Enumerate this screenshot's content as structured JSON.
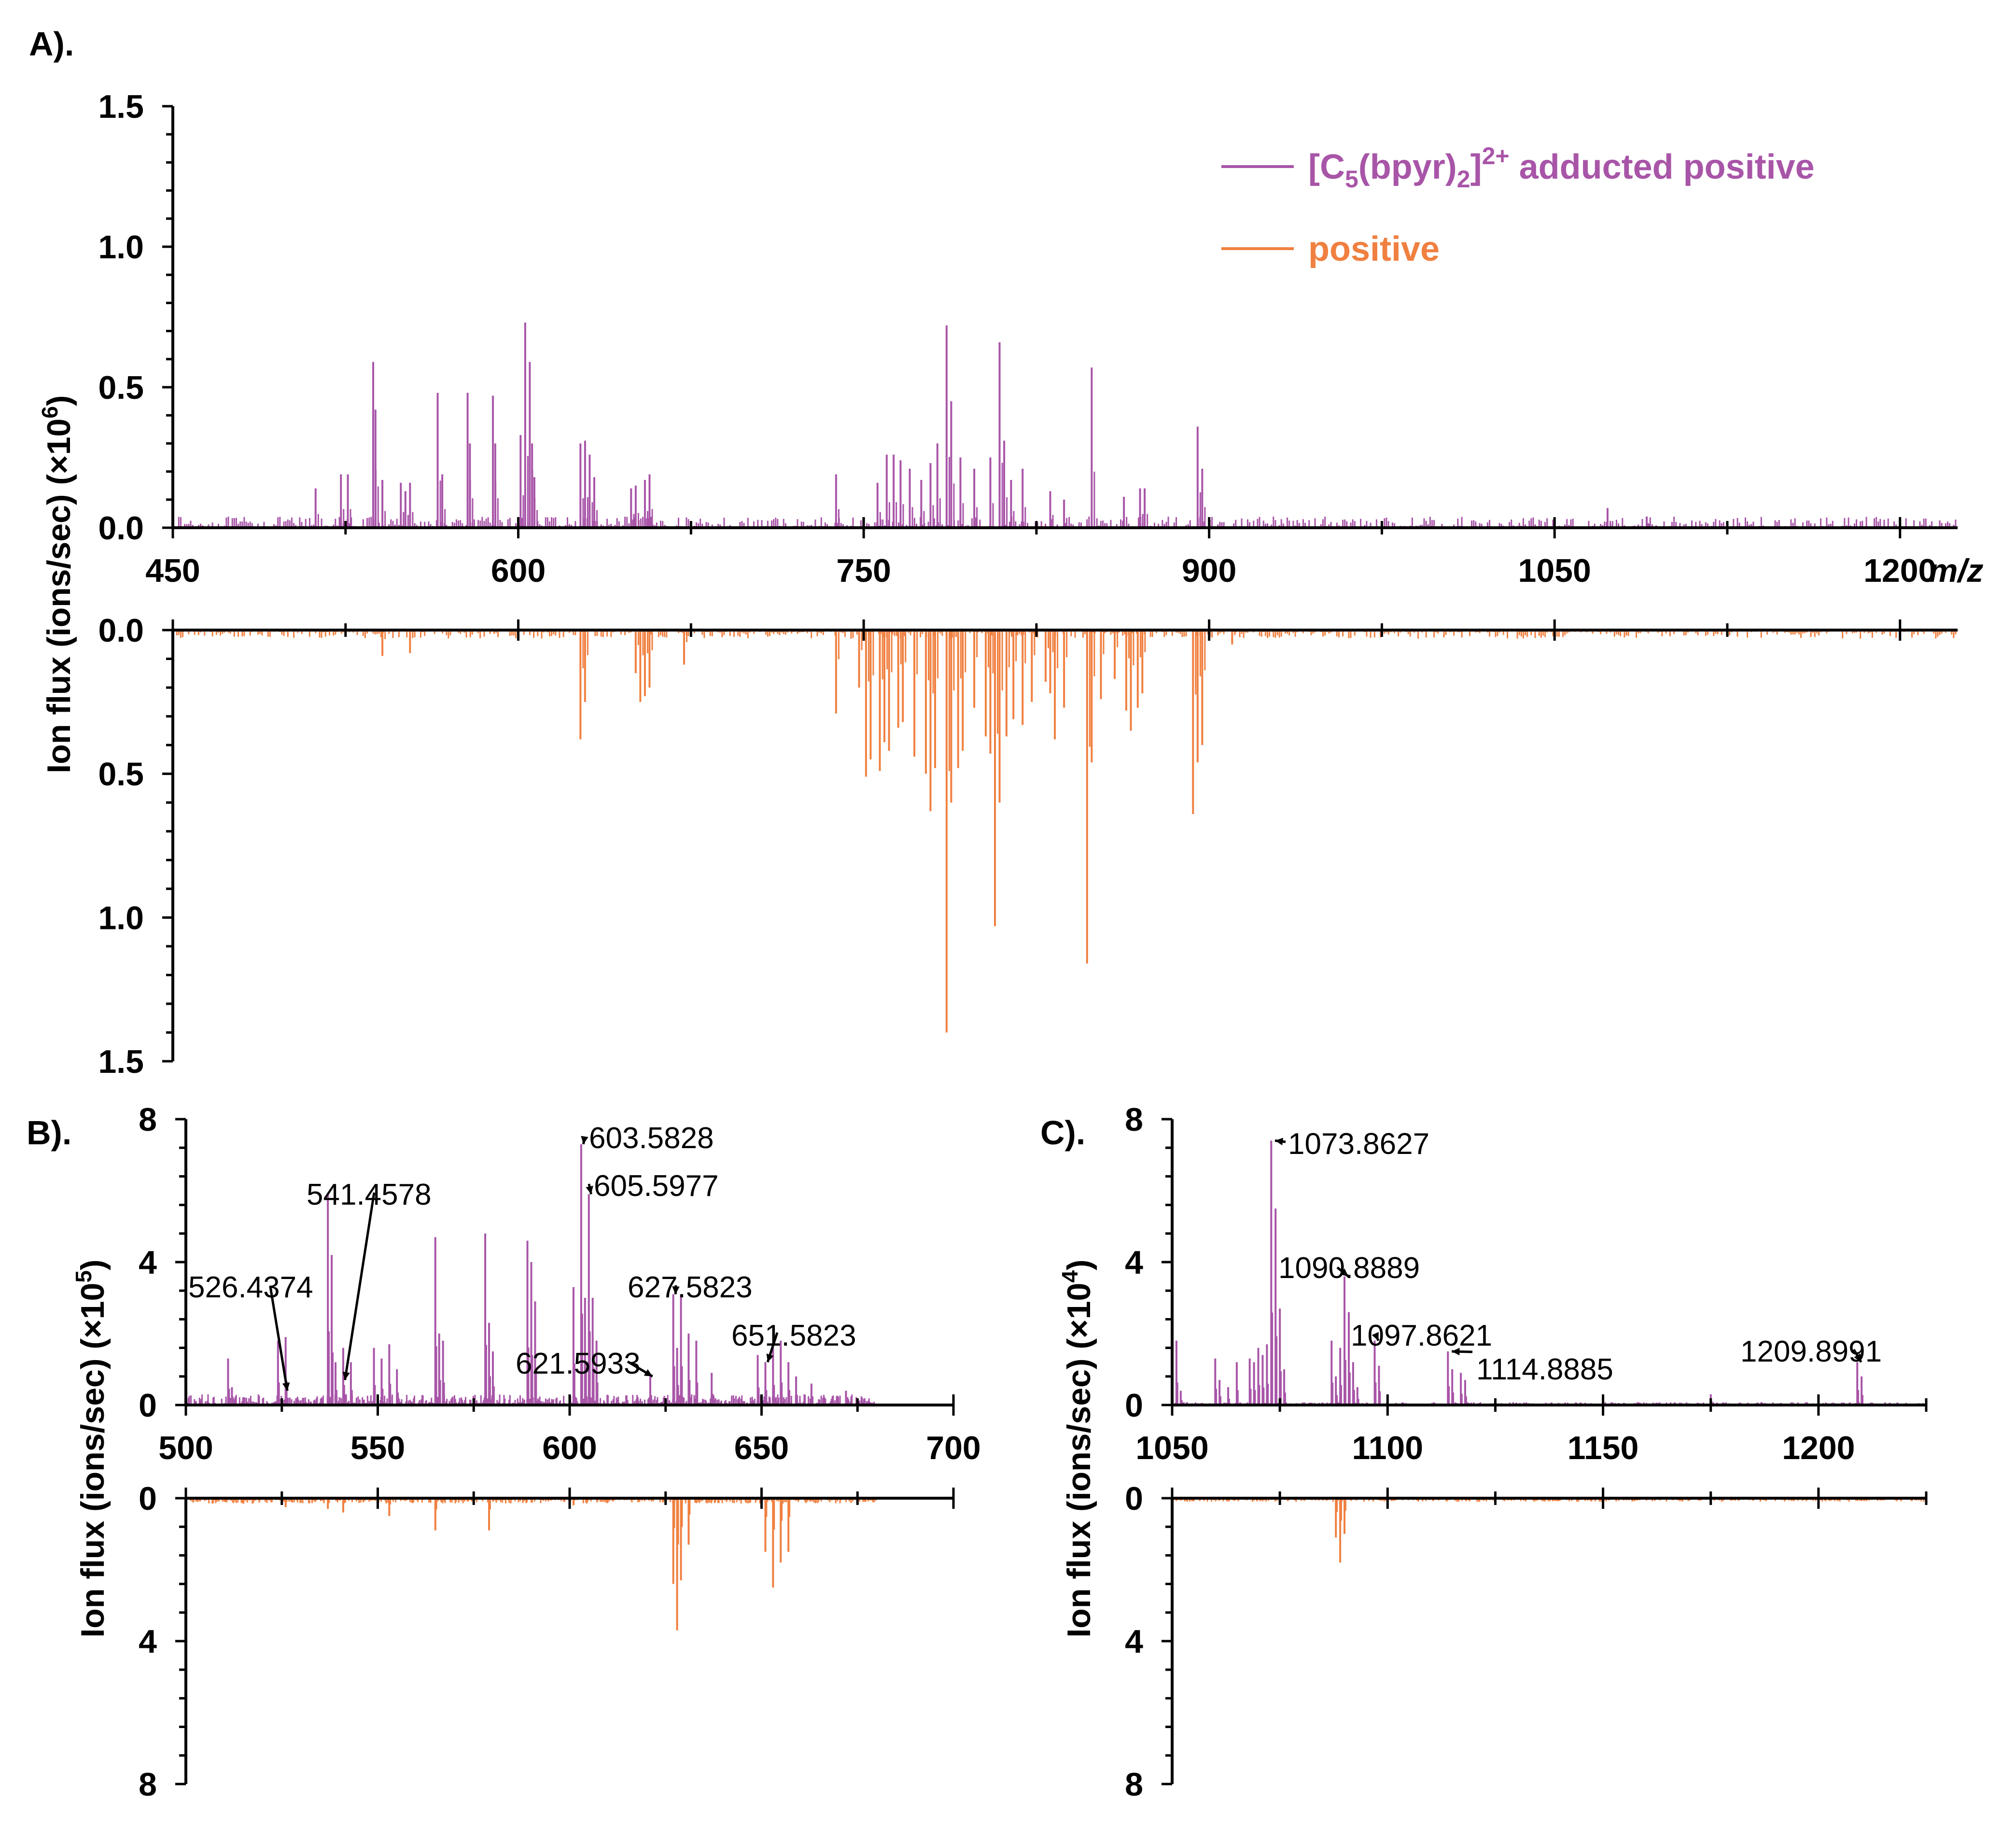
{
  "chart_data": [
    {
      "panel": "A).",
      "type": "bar",
      "subtype": "mirror mass spectrum",
      "xlabel": "m/z",
      "ylabel": "Ion flux (ions/sec)",
      "yunit": "(×10",
      "yexp": "6",
      "xlim": [
        450,
        1225
      ],
      "xticks": [
        "450",
        "600",
        "750",
        "900",
        "1050",
        "1200"
      ],
      "ylim_top": [
        0,
        1.5
      ],
      "ylim_bottom": [
        0,
        1.5
      ],
      "yticks_top": [
        "0.0",
        "0.5",
        "1.0",
        "1.5"
      ],
      "yticks_bottom": [
        "0.0",
        "0.5",
        "1.0",
        "1.5"
      ],
      "legend": {
        "placement": "top-right",
        "entries": [
          {
            "parts": [
              "[C",
              "5",
              "(bpyr)",
              "2",
              "]",
              "2+",
              " adducted positive"
            ],
            "color": "#a855a8"
          },
          {
            "parts": [
              "positive"
            ],
            "color": "#f08040"
          }
        ]
      },
      "series": [
        {
          "name": "[C5(bpyr)2]2+ adducted positive",
          "color": "#a855a8",
          "direction": "up",
          "peaks": [
            [
              512,
              0.14
            ],
            [
              523,
              0.19
            ],
            [
              526,
              0.19
            ],
            [
              537,
              0.59
            ],
            [
              538,
              0.42
            ],
            [
              541,
              0.17
            ],
            [
              549,
              0.16
            ],
            [
              551,
              0.13
            ],
            [
              553,
              0.16
            ],
            [
              565,
              0.48
            ],
            [
              567,
              0.19
            ],
            [
              578,
              0.48
            ],
            [
              579,
              0.3
            ],
            [
              589,
              0.47
            ],
            [
              590,
              0.3
            ],
            [
              601,
              0.33
            ],
            [
              603,
              0.73
            ],
            [
              605,
              0.59
            ],
            [
              606,
              0.3
            ],
            [
              607,
              0.18
            ],
            [
              627,
              0.3
            ],
            [
              629,
              0.31
            ],
            [
              631,
              0.26
            ],
            [
              633,
              0.18
            ],
            [
              649,
              0.14
            ],
            [
              651,
              0.15
            ],
            [
              655,
              0.17
            ],
            [
              657,
              0.19
            ],
            [
              738,
              0.19
            ],
            [
              756,
              0.16
            ],
            [
              760,
              0.26
            ],
            [
              763,
              0.26
            ],
            [
              766,
              0.24
            ],
            [
              770,
              0.21
            ],
            [
              775,
              0.17
            ],
            [
              779,
              0.23
            ],
            [
              782,
              0.3
            ],
            [
              786,
              0.72
            ],
            [
              788,
              0.45
            ],
            [
              792,
              0.25
            ],
            [
              798,
              0.21
            ],
            [
              805,
              0.25
            ],
            [
              809,
              0.66
            ],
            [
              811,
              0.31
            ],
            [
              814,
              0.17
            ],
            [
              819,
              0.21
            ],
            [
              831,
              0.13
            ],
            [
              837,
              0.1
            ],
            [
              849,
              0.57
            ],
            [
              863,
              0.11
            ],
            [
              870,
              0.14
            ],
            [
              872,
              0.14
            ],
            [
              895,
              0.36
            ],
            [
              897,
              0.21
            ],
            [
              1073,
              0.07
            ],
            [
              1090,
              0.04
            ]
          ],
          "noise_level": 0.04,
          "noise_range": [
            450,
            1225
          ]
        },
        {
          "name": "positive",
          "color": "#f08040",
          "direction": "down",
          "peaks": [
            [
              541,
              0.09
            ],
            [
              553,
              0.08
            ],
            [
              627,
              0.38
            ],
            [
              629,
              0.25
            ],
            [
              651,
              0.15
            ],
            [
              653,
              0.25
            ],
            [
              655,
              0.23
            ],
            [
              657,
              0.2
            ],
            [
              672,
              0.12
            ],
            [
              738,
              0.29
            ],
            [
              748,
              0.2
            ],
            [
              751,
              0.51
            ],
            [
              753,
              0.45
            ],
            [
              757,
              0.49
            ],
            [
              759,
              0.39
            ],
            [
              761,
              0.42
            ],
            [
              765,
              0.34
            ],
            [
              767,
              0.32
            ],
            [
              772,
              0.44
            ],
            [
              777,
              0.5
            ],
            [
              779,
              0.63
            ],
            [
              781,
              0.48
            ],
            [
              786,
              1.4
            ],
            [
              788,
              0.6
            ],
            [
              791,
              0.48
            ],
            [
              793,
              0.42
            ],
            [
              798,
              0.27
            ],
            [
              803,
              0.37
            ],
            [
              805,
              0.43
            ],
            [
              807,
              1.03
            ],
            [
              809,
              0.6
            ],
            [
              812,
              0.37
            ],
            [
              815,
              0.31
            ],
            [
              819,
              0.33
            ],
            [
              823,
              0.25
            ],
            [
              829,
              0.18
            ],
            [
              831,
              0.22
            ],
            [
              833,
              0.38
            ],
            [
              837,
              0.27
            ],
            [
              847,
              1.16
            ],
            [
              849,
              0.46
            ],
            [
              853,
              0.24
            ],
            [
              859,
              0.17
            ],
            [
              864,
              0.28
            ],
            [
              866,
              0.35
            ],
            [
              869,
              0.27
            ],
            [
              871,
              0.22
            ],
            [
              893,
              0.64
            ],
            [
              895,
              0.46
            ],
            [
              897,
              0.4
            ],
            [
              910,
              0.05
            ]
          ],
          "noise_level": 0.03,
          "noise_range": [
            450,
            1225
          ]
        }
      ]
    },
    {
      "panel": "B).",
      "type": "bar",
      "subtype": "mirror mass spectrum",
      "xlabel": "",
      "ylabel": "Ion flux (ions/sec)",
      "yunit": "(×10",
      "yexp": "5",
      "xlim": [
        500,
        700
      ],
      "xticks": [
        "500",
        "550",
        "600",
        "650",
        "700"
      ],
      "ylim_top": [
        0,
        8
      ],
      "ylim_bottom": [
        0,
        8
      ],
      "yticks_top": [
        "0",
        "4",
        "8"
      ],
      "yticks_bottom": [
        "0",
        "4",
        "8"
      ],
      "annotations": [
        {
          "text": "603.5828",
          "x": 603.5828,
          "y": 7.3
        },
        {
          "text": "605.5977",
          "x": 605.5977,
          "y": 5.9
        },
        {
          "text": "541.4578",
          "x": 541.4578,
          "y": 0.7
        },
        {
          "text": "526.4374",
          "x": 526.4374,
          "y": 0.4
        },
        {
          "text": "627.5823",
          "x": 627.5823,
          "y": 3.1
        },
        {
          "text": "621.5933",
          "x": 621.5933,
          "y": 0.8
        },
        {
          "text": "651.5823",
          "x": 651.5823,
          "y": 1.2
        }
      ],
      "series": [
        {
          "name": "[C5(bpyr)2]2+ adducted positive",
          "color": "#a855a8",
          "direction": "up",
          "peaks": [
            [
              511,
              1.3
            ],
            [
              512,
              0.5
            ],
            [
              524,
              1.8
            ],
            [
              526,
              1.9
            ],
            [
              537,
              5.9
            ],
            [
              538,
              4.2
            ],
            [
              539,
              1.2
            ],
            [
              541,
              1.6
            ],
            [
              543,
              1.2
            ],
            [
              549,
              1.6
            ],
            [
              551,
              1.3
            ],
            [
              553,
              1.7
            ],
            [
              555,
              1.0
            ],
            [
              565,
              4.7
            ],
            [
              566,
              2.0
            ],
            [
              567,
              1.8
            ],
            [
              578,
              4.8
            ],
            [
              579,
              2.3
            ],
            [
              580,
              1.5
            ],
            [
              589,
              4.6
            ],
            [
              590,
              4.0
            ],
            [
              591,
              2.9
            ],
            [
              601,
              3.3
            ],
            [
              603,
              7.3
            ],
            [
              604,
              3.0
            ],
            [
              605,
              5.9
            ],
            [
              606,
              3.0
            ],
            [
              607,
              1.8
            ],
            [
              621,
              0.8
            ],
            [
              627,
              3.1
            ],
            [
              628,
              1.6
            ],
            [
              629,
              3.1
            ],
            [
              631,
              2.0
            ],
            [
              633,
              1.8
            ],
            [
              637,
              0.9
            ],
            [
              649,
              1.4
            ],
            [
              651,
              1.2
            ],
            [
              653,
              1.6
            ],
            [
              655,
              1.8
            ],
            [
              657,
              1.2
            ],
            [
              659,
              0.8
            ],
            [
              663,
              0.6
            ],
            [
              672,
              0.4
            ]
          ],
          "noise_level": 0.3,
          "noise_range": [
            500,
            680
          ]
        },
        {
          "name": "positive",
          "color": "#f08040",
          "direction": "down",
          "peaks": [
            [
              515,
              0.15
            ],
            [
              526,
              0.25
            ],
            [
              537,
              0.3
            ],
            [
              541,
              0.4
            ],
            [
              553,
              0.5
            ],
            [
              565,
              0.9
            ],
            [
              579,
              0.9
            ],
            [
              601,
              0.2
            ],
            [
              627,
              2.4
            ],
            [
              628,
              3.7
            ],
            [
              629,
              2.3
            ],
            [
              631,
              1.3
            ],
            [
              651,
              1.5
            ],
            [
              653,
              2.5
            ],
            [
              655,
              1.8
            ],
            [
              657,
              1.5
            ]
          ],
          "noise_level": 0.15,
          "noise_range": [
            500,
            680
          ]
        }
      ]
    },
    {
      "panel": "C).",
      "type": "bar",
      "subtype": "mirror mass spectrum",
      "xlabel": "",
      "ylabel": "Ion flux (ions/sec)",
      "yunit": "(×10",
      "yexp": "4",
      "xlim": [
        1050,
        1225
      ],
      "xticks": [
        "1050",
        "1100",
        "1150",
        "1200"
      ],
      "ylim_top": [
        0,
        8
      ],
      "ylim_bottom": [
        0,
        8
      ],
      "yticks_top": [
        "0",
        "4",
        "8"
      ],
      "yticks_bottom": [
        "0",
        "4",
        "8"
      ],
      "annotations": [
        {
          "text": "1073.8627",
          "x": 1073.8627,
          "y": 7.4
        },
        {
          "text": "1090.8889",
          "x": 1090.8889,
          "y": 3.6
        },
        {
          "text": "1097.8621",
          "x": 1097.8621,
          "y": 1.8
        },
        {
          "text": "1114.8885",
          "x": 1114.8885,
          "y": 1.5
        },
        {
          "text": "1209.8991",
          "x": 1209.8991,
          "y": 1.2
        }
      ],
      "series": [
        {
          "name": "[C5(bpyr)2]2+ adducted positive",
          "color": "#a855a8",
          "direction": "up",
          "peaks": [
            [
              1051,
              1.8
            ],
            [
              1052,
              0.4
            ],
            [
              1060,
              1.3
            ],
            [
              1061,
              0.7
            ],
            [
              1063,
              0.5
            ],
            [
              1065,
              1.2
            ],
            [
              1068,
              1.3
            ],
            [
              1069,
              1.2
            ],
            [
              1070,
              1.6
            ],
            [
              1071,
              1.4
            ],
            [
              1072,
              1.7
            ],
            [
              1073,
              7.4
            ],
            [
              1074,
              5.5
            ],
            [
              1075,
              2.7
            ],
            [
              1076,
              1.0
            ],
            [
              1087,
              1.8
            ],
            [
              1088,
              0.8
            ],
            [
              1089,
              1.6
            ],
            [
              1090,
              3.6
            ],
            [
              1091,
              2.6
            ],
            [
              1092,
              1.2
            ],
            [
              1093,
              0.5
            ],
            [
              1097,
              1.8
            ],
            [
              1098,
              1.1
            ],
            [
              1114,
              1.5
            ],
            [
              1115,
              1.0
            ],
            [
              1117,
              0.9
            ],
            [
              1118,
              0.7
            ],
            [
              1175,
              0.3
            ],
            [
              1209,
              1.2
            ],
            [
              1210,
              0.8
            ]
          ],
          "noise_level": 0.08,
          "noise_range": [
            1050,
            1225
          ]
        },
        {
          "name": "positive",
          "color": "#f08040",
          "direction": "down",
          "peaks": [
            [
              1088,
              1.1
            ],
            [
              1089,
              1.8
            ],
            [
              1090,
              1.0
            ],
            [
              1150,
              0.2
            ]
          ],
          "noise_level": 0.1,
          "noise_range": [
            1050,
            1225
          ]
        }
      ]
    }
  ]
}
